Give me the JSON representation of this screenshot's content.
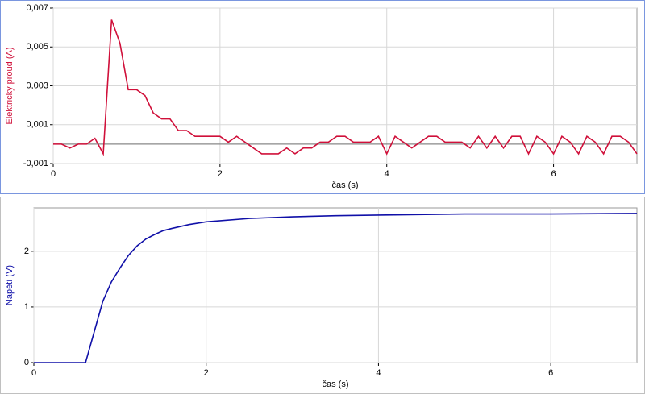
{
  "chart_data": [
    {
      "type": "line",
      "ylabel": "Elektrický proud (A)",
      "xlabel": "čas (s)",
      "xlim": [
        0,
        7
      ],
      "xticks": [
        0,
        2,
        4,
        6
      ],
      "ylim": [
        -0.001,
        0.007
      ],
      "yticks": [
        {
          "value": -0.001,
          "label": "-0,001"
        },
        {
          "value": 0.001,
          "label": "0,001"
        },
        {
          "value": 0.003,
          "label": "0,003"
        },
        {
          "value": 0.005,
          "label": "0,005"
        },
        {
          "value": 0.007,
          "label": "0,007"
        }
      ],
      "grid": true,
      "color": "#d0103a",
      "x": [
        0,
        0.1,
        0.2,
        0.3,
        0.4,
        0.5,
        0.6,
        0.7,
        0.8,
        0.9,
        1.0,
        1.1,
        1.2,
        1.3,
        1.4,
        1.5,
        1.6,
        1.7,
        1.8,
        1.9,
        2.0,
        2.1,
        2.2,
        2.3,
        2.4,
        2.5,
        2.6,
        2.7,
        2.8,
        2.9,
        3.0,
        3.1,
        3.2,
        3.3,
        3.4,
        3.5,
        3.6,
        3.7,
        3.8,
        3.9,
        4.0,
        4.1,
        4.2,
        4.3,
        4.4,
        4.5,
        4.6,
        4.7,
        4.8,
        4.9,
        5.0,
        5.1,
        5.2,
        5.3,
        5.4,
        5.5,
        5.6,
        5.7,
        5.8,
        5.9,
        6.0,
        6.1,
        6.2,
        6.3,
        6.4,
        6.5,
        6.6,
        6.7,
        6.8,
        6.9,
        7.0
      ],
      "values": [
        0,
        0,
        -0.0002,
        0,
        0,
        0.0003,
        -0.0005,
        0.0064,
        0.0052,
        0.0028,
        0.0028,
        0.0025,
        0.0016,
        0.0013,
        0.0013,
        0.0007,
        0.0007,
        0.0004,
        0.0004,
        0.0004,
        0.0004,
        0.0001,
        0.0004,
        0.0001,
        -0.0002,
        -0.0005,
        -0.0005,
        -0.0005,
        -0.0002,
        -0.0005,
        -0.0002,
        -0.0002,
        0.0001,
        0.0001,
        0.0004,
        0.0004,
        0.0001,
        0.0001,
        0.0001,
        0.0004,
        -0.0005,
        0.0004,
        0.0001,
        -0.0002,
        0.0001,
        0.0004,
        0.0004,
        0.0001,
        0.0001,
        0.0001,
        -0.0002,
        0.0004,
        -0.0002,
        0.0004,
        -0.0002,
        0.0004,
        0.0004,
        -0.0005,
        0.0004,
        0.0001,
        -0.0005,
        0.0004,
        0.0001,
        -0.0005,
        0.0004,
        0.0001,
        -0.0005,
        0.0004,
        0.0004,
        0.0001,
        -0.0005
      ]
    },
    {
      "type": "line",
      "ylabel": "Napětí (V)",
      "xlabel": "čas (s)",
      "xlim": [
        0,
        7
      ],
      "xticks": [
        0,
        2,
        4,
        6
      ],
      "ylim": [
        0,
        2.78
      ],
      "yticks": [
        0,
        1,
        2
      ],
      "grid": true,
      "color": "#1010a8",
      "x": [
        0,
        0.6,
        0.7,
        0.8,
        0.9,
        1.0,
        1.1,
        1.2,
        1.3,
        1.4,
        1.5,
        1.6,
        1.8,
        2.0,
        2.5,
        3.0,
        3.5,
        4.0,
        5.0,
        6.0,
        7.0
      ],
      "values": [
        0,
        0,
        0.55,
        1.1,
        1.45,
        1.7,
        1.93,
        2.1,
        2.22,
        2.3,
        2.37,
        2.41,
        2.48,
        2.53,
        2.59,
        2.62,
        2.64,
        2.65,
        2.67,
        2.67,
        2.68
      ]
    }
  ]
}
